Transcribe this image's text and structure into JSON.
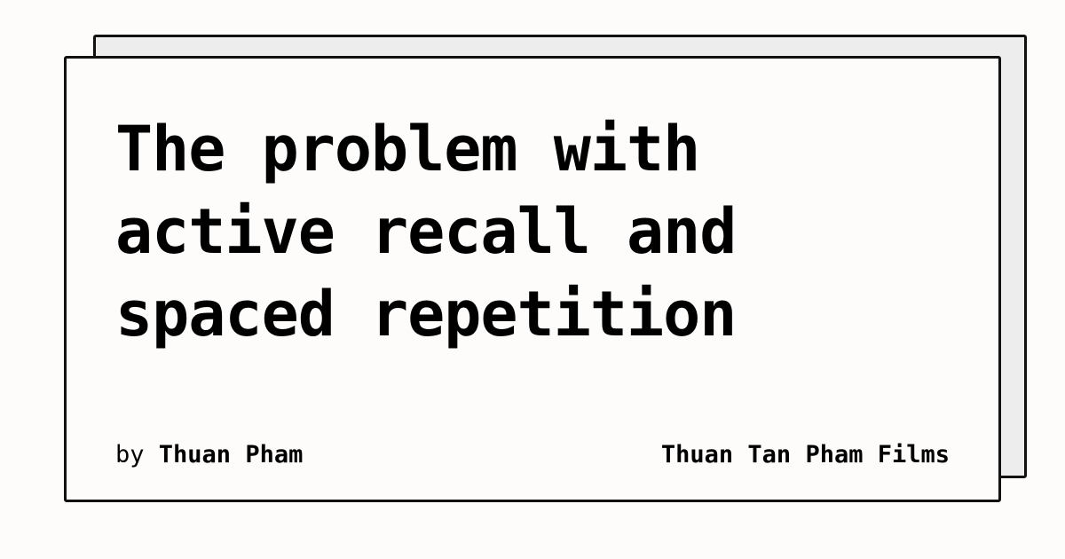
{
  "card": {
    "title_lines": [
      "The problem with",
      "active recall and",
      "spaced repetition"
    ],
    "byline": {
      "prefix": "by",
      "author": "Thuan Pham"
    },
    "site_name": "Thuan Tan Pham Films"
  },
  "colors": {
    "page_background": "#fdfcfa",
    "back_card_fill": "#ededed",
    "border": "#111111",
    "text": "#000000"
  }
}
